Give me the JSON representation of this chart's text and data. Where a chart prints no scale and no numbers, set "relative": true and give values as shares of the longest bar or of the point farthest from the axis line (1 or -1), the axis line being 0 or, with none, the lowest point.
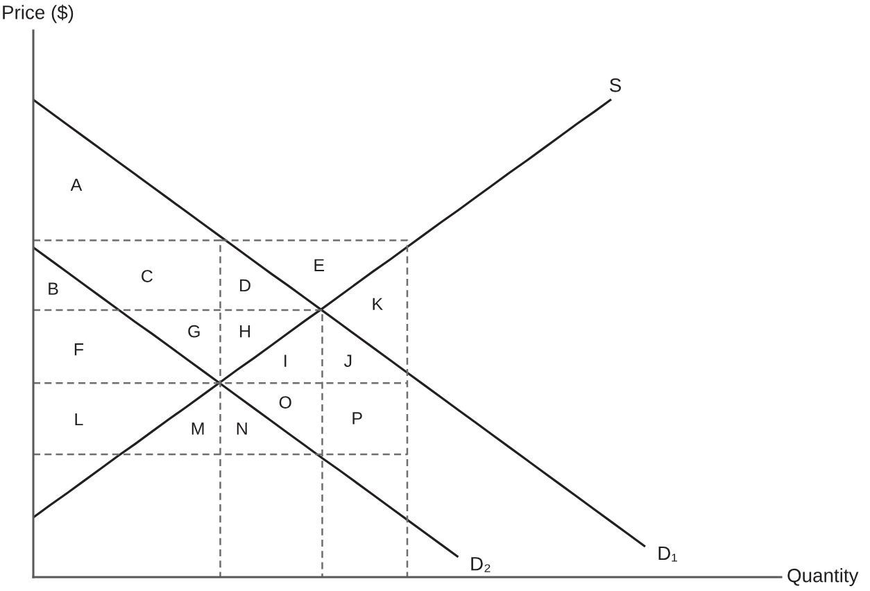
{
  "chart_data": {
    "type": "line",
    "relative": true,
    "xlabel": "Quantity",
    "ylabel": "Price ($)",
    "line_style": "solid",
    "categories": [
      null,
      null,
      null,
      null,
      null,
      null,
      null,
      null,
      null,
      null,
      null,
      null,
      null,
      null,
      null,
      null,
      null,
      null,
      null,
      null,
      null,
      null,
      null,
      null,
      null,
      null,
      null,
      null,
      null,
      null,
      null,
      null,
      null,
      null,
      null,
      null,
      null,
      null,
      null,
      null,
      null,
      null,
      null,
      null,
      null
    ],
    "series": [
      {
        "name": "S",
        "color": "#231f20",
        "values": [
          0.125,
          0.151,
          0.176,
          0.202,
          0.228,
          0.254,
          0.279,
          0.305,
          0.331,
          0.356,
          0.382,
          0.408,
          0.434,
          0.459,
          0.485,
          0.511,
          0.537,
          0.562,
          0.588,
          0.614,
          0.64,
          0.665,
          0.691,
          0.717,
          0.743,
          0.768,
          0.794,
          0.82,
          0.846,
          0.871,
          0.897,
          0.923,
          0.949,
          0.974,
          1.0,
          null,
          null,
          null,
          null,
          null,
          null,
          null,
          null,
          null,
          null
        ]
      },
      {
        "name": "D₁",
        "color": "#231f20",
        "values": [
          0.999,
          0.973,
          0.947,
          0.921,
          0.895,
          0.869,
          0.843,
          0.817,
          0.791,
          0.765,
          0.739,
          0.713,
          0.687,
          0.661,
          0.635,
          0.61,
          0.584,
          0.558,
          0.532,
          0.506,
          0.48,
          0.454,
          0.428,
          0.402,
          0.376,
          0.35,
          0.324,
          0.298,
          0.272,
          0.246,
          0.22,
          0.194,
          0.168,
          0.142,
          0.116,
          0.09,
          0.064,
          null,
          null,
          null,
          null,
          null,
          null,
          null,
          null
        ]
      },
      {
        "name": "D₂",
        "color": "#231f20",
        "values": [
          0.69,
          0.664,
          0.638,
          0.612,
          0.586,
          0.56,
          0.534,
          0.509,
          0.483,
          0.457,
          0.431,
          0.405,
          0.379,
          0.353,
          0.327,
          0.301,
          0.275,
          0.249,
          0.224,
          0.198,
          0.172,
          0.146,
          0.12,
          0.094,
          0.068,
          0.042,
          null,
          null,
          null,
          null,
          null,
          null,
          null,
          null,
          null,
          null,
          null,
          null,
          null,
          null,
          null,
          null,
          null,
          null,
          null
        ]
      },
      {
        "type": "step",
        "color": "#6d6e71",
        "line_style": "dashed",
        "values": [
          0.705,
          0.705,
          0.705,
          0.705,
          0.705,
          0.705,
          0.705,
          0.705,
          0.705,
          0.705,
          0.705,
          0,
          null,
          null,
          null,
          null,
          null,
          null,
          null,
          null,
          null,
          null,
          null,
          null,
          null,
          null,
          null,
          null,
          null,
          null,
          null,
          null,
          null,
          null,
          null,
          null,
          null,
          null,
          null,
          null,
          null,
          null,
          null,
          null,
          null
        ]
      },
      {
        "type": "step",
        "color": "#6d6e71",
        "line_style": "dashed",
        "values": [
          null,
          null,
          null,
          null,
          null,
          null,
          null,
          null,
          null,
          null,
          null,
          0.705,
          0.705,
          0.705,
          0.705,
          0.705,
          0.705,
          0.705,
          0.705,
          0.705,
          0.705,
          0.705,
          0,
          null,
          null,
          null,
          null,
          null,
          null,
          null,
          null,
          null,
          null,
          null,
          null,
          null,
          null,
          null,
          null,
          null,
          null,
          null,
          null,
          null,
          null
        ]
      },
      {
        "type": "step",
        "color": "#6d6e71",
        "line_style": "dashed",
        "values": [
          0.559,
          0.559,
          0.559,
          0.559,
          0.559,
          0.559,
          0.559,
          0.559,
          0.559,
          0.559,
          0.559,
          0.559,
          0.559,
          0.559,
          0.559,
          0.559,
          0.559,
          0,
          null,
          null,
          null,
          null,
          null,
          null,
          null,
          null,
          null,
          null,
          null,
          null,
          null,
          null,
          null,
          null,
          null,
          null,
          null,
          null,
          null,
          null,
          null,
          null,
          null,
          null,
          null
        ]
      },
      {
        "type": "line",
        "color": "#6d6e71",
        "line_style": "dashed",
        "values": [
          0.406,
          0.406,
          0.406,
          0.406,
          0.406,
          0.406,
          0.406,
          0.406,
          0.406,
          0.406,
          0.406,
          0.406,
          0.406,
          0.406,
          0.406,
          0.406,
          0.406,
          0.406,
          0.406,
          0.406,
          0.406,
          0.406,
          0.406,
          null,
          null,
          null,
          null,
          null,
          null,
          null,
          null,
          null,
          null,
          null,
          null,
          null,
          null,
          null,
          null,
          null,
          null,
          null,
          null,
          null,
          null
        ]
      },
      {
        "type": "line",
        "color": "#6d6e71",
        "line_style": "dashed",
        "values": [
          0.257,
          0.257,
          0.257,
          0.257,
          0.257,
          0.257,
          0.257,
          0.257,
          0.257,
          0.257,
          0.257,
          0.257,
          0.257,
          0.257,
          0.257,
          0.257,
          0.257,
          0.257,
          0.257,
          0.257,
          0.257,
          0.257,
          0.257,
          null,
          null,
          null,
          null,
          null,
          null,
          null,
          null,
          null,
          null,
          null,
          null,
          null,
          null,
          null,
          null,
          null,
          null,
          null,
          null,
          null,
          null
        ]
      }
    ],
    "annotations": [
      "A",
      "B",
      "C",
      "D",
      "E",
      "F",
      "G",
      "H",
      "I",
      "J",
      "K",
      "L",
      "M",
      "N",
      "O",
      "P"
    ]
  }
}
